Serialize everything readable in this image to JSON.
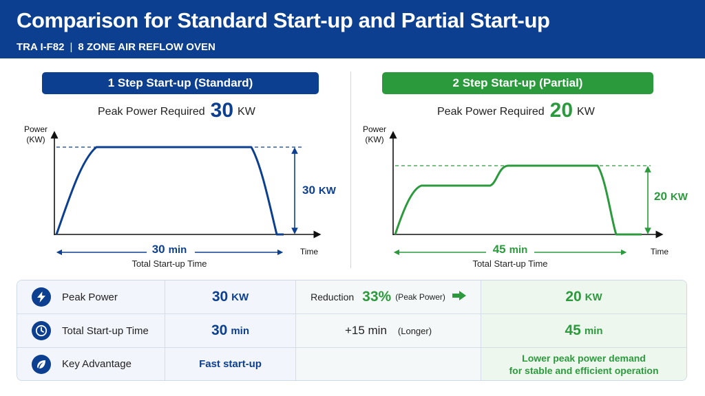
{
  "header": {
    "title": "Comparison for Standard Start-up and Partial Start-up",
    "subtitle_model": "TRA I-F82",
    "subtitle_separator": "|",
    "subtitle_desc": "8 ZONE AIR REFLOW OVEN"
  },
  "standard": {
    "heading": "1 Step Start-up (Standard)",
    "peak_label": "Peak Power Required",
    "peak_value": "30",
    "peak_unit": "KW",
    "y_axis_label_1": "Power",
    "y_axis_label_2": "(KW)",
    "x_axis_label": "Time",
    "power_value": "30",
    "power_unit": "KW",
    "time_value": "30",
    "time_unit": "min",
    "time_caption": "Total Start-up Time"
  },
  "partial": {
    "heading": "2 Step Start-up (Partial)",
    "peak_label": "Peak Power Required",
    "peak_value": "20",
    "peak_unit": "KW",
    "y_axis_label_1": "Power",
    "y_axis_label_2": "(KW)",
    "x_axis_label": "Time",
    "power_value": "20",
    "power_unit": "KW",
    "time_value": "45",
    "time_unit": "min",
    "time_caption": "Total Start-up Time"
  },
  "colors": {
    "primary_blue": "#0c3f8f",
    "primary_green": "#2b9a3c"
  },
  "table": {
    "rows": [
      {
        "icon": "lightning-icon",
        "label": "Peak Power",
        "standard_value": "30",
        "standard_unit": "KW",
        "mid_label": "Reduction",
        "mid_value": "33%",
        "mid_note": "(Peak Power)",
        "mid_icon": "arrow-right-icon",
        "partial_value": "20",
        "partial_unit": "KW"
      },
      {
        "icon": "clock-icon",
        "label": "Total Start-up Time",
        "standard_value": "30",
        "standard_unit": "min",
        "mid_value": "+15 min",
        "mid_note": "(Longer)",
        "partial_value": "45",
        "partial_unit": "min"
      },
      {
        "icon": "leaf-icon",
        "label": "Key Advantage",
        "standard_value": "Fast start-up",
        "partial_line_1": "Lower peak power demand",
        "partial_line_2": "for stable and efficient operation"
      }
    ]
  }
}
